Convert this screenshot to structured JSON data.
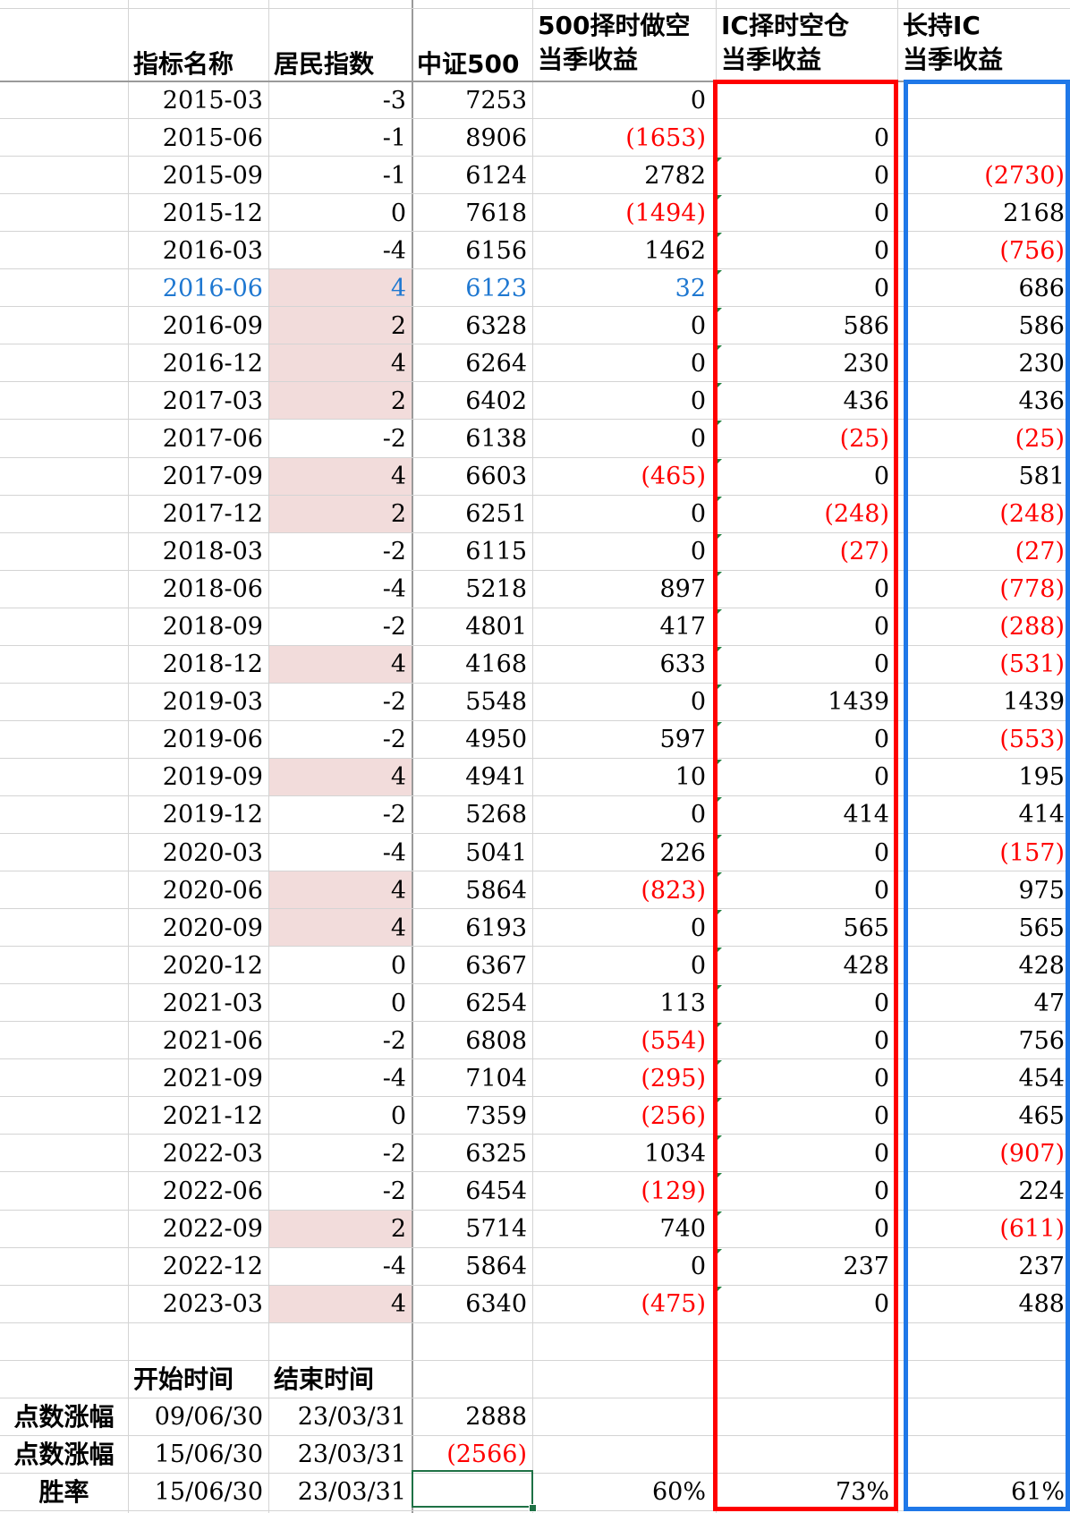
{
  "headers": {
    "col_name": "指标名称",
    "col_resident": "居民指数",
    "col_csi500": "中证500",
    "col_short500": [
      "500择时做空",
      "当季收益"
    ],
    "col_ic_timing": [
      "IC择时空仓",
      "当季收益"
    ],
    "col_hold_ic": [
      "长持IC",
      "当季收益"
    ]
  },
  "rows": [
    {
      "date": "2015-03",
      "res": "-3",
      "csi": "7253",
      "s500": "0",
      "ic": "",
      "hold": "",
      "hi": false,
      "blue": false
    },
    {
      "date": "2015-06",
      "res": "-1",
      "csi": "8906",
      "s500": "(1653)",
      "ic": "0",
      "hold": "",
      "hi": false,
      "blue": false
    },
    {
      "date": "2015-09",
      "res": "-1",
      "csi": "6124",
      "s500": "2782",
      "ic": "0",
      "hold": "(2730)",
      "hi": false,
      "blue": false
    },
    {
      "date": "2015-12",
      "res": "0",
      "csi": "7618",
      "s500": "(1494)",
      "ic": "0",
      "hold": "2168",
      "hi": false,
      "blue": false
    },
    {
      "date": "2016-03",
      "res": "-4",
      "csi": "6156",
      "s500": "1462",
      "ic": "0",
      "hold": "(756)",
      "hi": false,
      "blue": false
    },
    {
      "date": "2016-06",
      "res": "4",
      "csi": "6123",
      "s500": "32",
      "ic": "0",
      "hold": "686",
      "hi": true,
      "blue": true
    },
    {
      "date": "2016-09",
      "res": "2",
      "csi": "6328",
      "s500": "0",
      "ic": "586",
      "hold": "586",
      "hi": true,
      "blue": false
    },
    {
      "date": "2016-12",
      "res": "4",
      "csi": "6264",
      "s500": "0",
      "ic": "230",
      "hold": "230",
      "hi": true,
      "blue": false
    },
    {
      "date": "2017-03",
      "res": "2",
      "csi": "6402",
      "s500": "0",
      "ic": "436",
      "hold": "436",
      "hi": true,
      "blue": false
    },
    {
      "date": "2017-06",
      "res": "-2",
      "csi": "6138",
      "s500": "0",
      "ic": "(25)",
      "hold": "(25)",
      "hi": false,
      "blue": false
    },
    {
      "date": "2017-09",
      "res": "4",
      "csi": "6603",
      "s500": "(465)",
      "ic": "0",
      "hold": "581",
      "hi": true,
      "blue": false
    },
    {
      "date": "2017-12",
      "res": "2",
      "csi": "6251",
      "s500": "0",
      "ic": "(248)",
      "hold": "(248)",
      "hi": true,
      "blue": false
    },
    {
      "date": "2018-03",
      "res": "-2",
      "csi": "6115",
      "s500": "0",
      "ic": "(27)",
      "hold": "(27)",
      "hi": false,
      "blue": false
    },
    {
      "date": "2018-06",
      "res": "-4",
      "csi": "5218",
      "s500": "897",
      "ic": "0",
      "hold": "(778)",
      "hi": false,
      "blue": false
    },
    {
      "date": "2018-09",
      "res": "-2",
      "csi": "4801",
      "s500": "417",
      "ic": "0",
      "hold": "(288)",
      "hi": false,
      "blue": false
    },
    {
      "date": "2018-12",
      "res": "4",
      "csi": "4168",
      "s500": "633",
      "ic": "0",
      "hold": "(531)",
      "hi": true,
      "blue": false
    },
    {
      "date": "2019-03",
      "res": "-2",
      "csi": "5548",
      "s500": "0",
      "ic": "1439",
      "hold": "1439",
      "hi": false,
      "blue": false
    },
    {
      "date": "2019-06",
      "res": "-2",
      "csi": "4950",
      "s500": "597",
      "ic": "0",
      "hold": "(553)",
      "hi": false,
      "blue": false
    },
    {
      "date": "2019-09",
      "res": "4",
      "csi": "4941",
      "s500": "10",
      "ic": "0",
      "hold": "195",
      "hi": true,
      "blue": false
    },
    {
      "date": "2019-12",
      "res": "-2",
      "csi": "5268",
      "s500": "0",
      "ic": "414",
      "hold": "414",
      "hi": false,
      "blue": false
    },
    {
      "date": "2020-03",
      "res": "-4",
      "csi": "5041",
      "s500": "226",
      "ic": "0",
      "hold": "(157)",
      "hi": false,
      "blue": false
    },
    {
      "date": "2020-06",
      "res": "4",
      "csi": "5864",
      "s500": "(823)",
      "ic": "0",
      "hold": "975",
      "hi": true,
      "blue": false
    },
    {
      "date": "2020-09",
      "res": "4",
      "csi": "6193",
      "s500": "0",
      "ic": "565",
      "hold": "565",
      "hi": true,
      "blue": false
    },
    {
      "date": "2020-12",
      "res": "0",
      "csi": "6367",
      "s500": "0",
      "ic": "428",
      "hold": "428",
      "hi": false,
      "blue": false
    },
    {
      "date": "2021-03",
      "res": "0",
      "csi": "6254",
      "s500": "113",
      "ic": "0",
      "hold": "47",
      "hi": false,
      "blue": false
    },
    {
      "date": "2021-06",
      "res": "-2",
      "csi": "6808",
      "s500": "(554)",
      "ic": "0",
      "hold": "756",
      "hi": false,
      "blue": false
    },
    {
      "date": "2021-09",
      "res": "-4",
      "csi": "7104",
      "s500": "(295)",
      "ic": "0",
      "hold": "454",
      "hi": false,
      "blue": false
    },
    {
      "date": "2021-12",
      "res": "0",
      "csi": "7359",
      "s500": "(256)",
      "ic": "0",
      "hold": "465",
      "hi": false,
      "blue": false
    },
    {
      "date": "2022-03",
      "res": "-2",
      "csi": "6325",
      "s500": "1034",
      "ic": "0",
      "hold": "(907)",
      "hi": false,
      "blue": false
    },
    {
      "date": "2022-06",
      "res": "-2",
      "csi": "6454",
      "s500": "(129)",
      "ic": "0",
      "hold": "224",
      "hi": false,
      "blue": false
    },
    {
      "date": "2022-09",
      "res": "2",
      "csi": "5714",
      "s500": "740",
      "ic": "0",
      "hold": "(611)",
      "hi": true,
      "blue": false
    },
    {
      "date": "2022-12",
      "res": "-4",
      "csi": "5864",
      "s500": "0",
      "ic": "237",
      "hold": "237",
      "hi": false,
      "blue": false
    },
    {
      "date": "2023-03",
      "res": "4",
      "csi": "6340",
      "s500": "(475)",
      "ic": "0",
      "hold": "488",
      "hi": true,
      "blue": false
    }
  ],
  "summary": {
    "start_label": "开始时间",
    "end_label": "结束时间",
    "rows": [
      {
        "label": "点数涨幅",
        "start": "09/06/30",
        "end": "23/03/31",
        "csi": "2888",
        "s500": "",
        "ic": "",
        "hold": ""
      },
      {
        "label": "点数涨幅",
        "start": "15/06/30",
        "end": "23/03/31",
        "csi": "(2566)",
        "s500": "",
        "ic": "",
        "hold": ""
      },
      {
        "label": "胜率",
        "start": "15/06/30",
        "end": "23/03/31",
        "csi": "",
        "s500": "60%",
        "ic": "73%",
        "hold": "61%"
      }
    ]
  },
  "colors": {
    "highlight_fill": "#f2dcdb",
    "negative_text": "#ff0000",
    "blue_text": "#1f78d1",
    "red_box": "#ff0000",
    "blue_box": "#1f78e8",
    "selection": "#1e7145"
  }
}
